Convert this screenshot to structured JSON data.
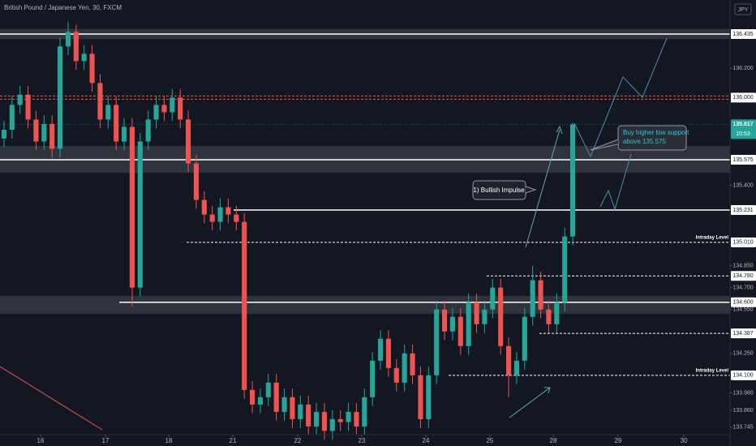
{
  "chart_data": {
    "type": "candlestick",
    "title": "British Pound / Japanese Yen, 30, FXCM",
    "currency": "JPY",
    "up_color": "#26a69a",
    "down_color": "#ef5350",
    "grid": false,
    "xlim": [
      -0.5,
      90.64
    ],
    "ylim": [
      133.694,
      136.668
    ],
    "xticks": [
      {
        "value": 4.56,
        "label": "16"
      },
      {
        "value": 12.66,
        "label": "17"
      },
      {
        "value": 20.56,
        "label": "18"
      },
      {
        "value": 28.56,
        "label": "21"
      },
      {
        "value": 36.66,
        "label": "22"
      },
      {
        "value": 44.66,
        "label": "23"
      },
      {
        "value": 52.66,
        "label": "24"
      },
      {
        "value": 60.66,
        "label": "25"
      },
      {
        "value": 68.56,
        "label": "28"
      },
      {
        "value": 76.66,
        "label": "29"
      },
      {
        "value": 84.87,
        "label": "30"
      }
    ],
    "yticks": [
      {
        "value": 136.2,
        "label": "136.200"
      },
      {
        "value": 135.4,
        "label": "135.400"
      },
      {
        "value": 134.85,
        "label": "134.850"
      },
      {
        "value": 134.7,
        "label": "134.700"
      },
      {
        "value": 134.55,
        "label": "134.550"
      },
      {
        "value": 134.25,
        "label": "134.250"
      },
      {
        "value": 133.98,
        "label": "133.980"
      },
      {
        "value": 133.86,
        "label": "133.860"
      },
      {
        "value": 133.745,
        "label": "133.745"
      }
    ],
    "bands": [
      [
        136.4,
        136.47
      ],
      [
        135.486,
        135.669
      ],
      [
        134.521,
        134.643
      ]
    ],
    "levels": [
      {
        "value": 136.435,
        "label": "136.435",
        "start": -0.5,
        "style": "solid",
        "color": "#ffffff"
      },
      {
        "value": 136.0,
        "label": "136.000",
        "start": -0.5,
        "style": "double-dashed",
        "color": "#ef5350"
      },
      {
        "value": 135.575,
        "label": "135.575",
        "start": -0.5,
        "style": "solid",
        "color": "#ffffff"
      },
      {
        "value": 135.231,
        "label": "135.231",
        "start": 28.66,
        "style": "solid",
        "color": "#ffffff"
      },
      {
        "value": 135.01,
        "label": "135.010",
        "start": 22.79,
        "style": "dashed",
        "color": "#ffffff",
        "note": "Intraday Level"
      },
      {
        "value": 134.78,
        "label": "134.780",
        "start": 60.26,
        "style": "dashed",
        "color": "#ffffff"
      },
      {
        "value": 134.6,
        "label": "134.600",
        "start": 14.39,
        "style": "solid",
        "color": "#ffffff"
      },
      {
        "value": 134.387,
        "label": "134.387",
        "start": 66.84,
        "style": "dashed",
        "color": "#ffffff"
      },
      {
        "value": 134.1,
        "label": "134.100",
        "start": 55.5,
        "style": "dashed",
        "color": "#ffffff",
        "note": "Intraday Level"
      }
    ],
    "last_price": {
      "value": 135.817,
      "label": "135.817",
      "countdown": "10:53"
    },
    "annotations": [
      "1) Bullish Impulse",
      "Buy higher low support",
      "above 135.575"
    ],
    "x": [
      0,
      1,
      2,
      3,
      4,
      5,
      6,
      7,
      8,
      9,
      10,
      11,
      12,
      13,
      14,
      15,
      16,
      17,
      18,
      19,
      20,
      21,
      22,
      23,
      24,
      25,
      26,
      27,
      28,
      29,
      30,
      31,
      32,
      33,
      34,
      35,
      36,
      37,
      38,
      39,
      40,
      41,
      42,
      43,
      44,
      45,
      46,
      47,
      48,
      49,
      50,
      51,
      52,
      53,
      54,
      55,
      56,
      57,
      58,
      59,
      60,
      61,
      62,
      63,
      64,
      65,
      66,
      67,
      68,
      69,
      70,
      71
    ],
    "open": [
      135.72,
      135.78,
      135.95,
      136.02,
      135.85,
      135.7,
      135.82,
      135.65,
      136.35,
      136.45,
      136.25,
      136.3,
      136.1,
      135.85,
      135.95,
      135.7,
      135.8,
      134.7,
      135.7,
      135.85,
      135.95,
      135.9,
      136.0,
      135.85,
      135.55,
      135.3,
      135.2,
      135.15,
      135.25,
      135.2,
      135.15,
      134.0,
      133.9,
      133.95,
      134.05,
      133.85,
      133.95,
      133.8,
      133.9,
      133.75,
      133.85,
      133.72,
      133.8,
      133.78,
      133.85,
      133.75,
      133.95,
      134.2,
      134.35,
      134.15,
      134.05,
      134.25,
      134.1,
      133.8,
      134.1,
      134.55,
      134.4,
      134.5,
      134.3,
      134.6,
      134.45,
      134.55,
      134.7,
      134.3,
      134.1,
      134.2,
      134.5,
      134.75,
      134.55,
      134.45,
      134.6,
      135.05
    ],
    "high": [
      135.84,
      136.01,
      136.08,
      136.08,
      135.91,
      135.88,
      135.88,
      136.41,
      136.52,
      136.5,
      136.36,
      136.36,
      136.16,
      136.01,
      136.01,
      135.86,
      135.86,
      135.76,
      135.91,
      136.01,
      136.01,
      136.06,
      136.06,
      135.91,
      135.61,
      135.36,
      135.26,
      135.31,
      135.31,
      135.26,
      135.21,
      134.06,
      134.01,
      134.11,
      134.11,
      134.01,
      134.01,
      133.96,
      133.96,
      133.91,
      133.91,
      133.86,
      133.86,
      133.91,
      133.91,
      134.01,
      134.26,
      134.41,
      134.41,
      134.21,
      134.31,
      134.31,
      134.16,
      134.16,
      134.61,
      134.61,
      134.56,
      134.56,
      134.66,
      134.66,
      134.61,
      134.76,
      134.76,
      134.36,
      134.26,
      134.56,
      134.85,
      134.81,
      134.61,
      134.66,
      135.11,
      135.83
    ],
    "low": [
      135.66,
      135.72,
      135.89,
      135.79,
      135.64,
      135.64,
      135.59,
      135.59,
      136.29,
      136.19,
      136.19,
      136.04,
      135.79,
      135.79,
      135.64,
      135.64,
      134.57,
      134.64,
      135.64,
      135.79,
      135.84,
      135.84,
      135.79,
      135.49,
      135.24,
      135.14,
      135.09,
      135.09,
      135.14,
      135.09,
      133.94,
      133.84,
      133.84,
      133.89,
      133.79,
      133.79,
      133.74,
      133.74,
      133.69,
      133.69,
      133.66,
      133.66,
      133.72,
      133.72,
      133.69,
      133.69,
      133.89,
      134.14,
      134.09,
      133.99,
      133.99,
      134.04,
      133.74,
      133.74,
      134.04,
      134.34,
      134.34,
      134.24,
      134.24,
      134.39,
      134.39,
      134.49,
      134.24,
      133.95,
      134.04,
      134.14,
      134.44,
      134.49,
      134.39,
      134.39,
      134.54,
      134.99
    ],
    "close": [
      135.78,
      135.95,
      136.02,
      135.85,
      135.7,
      135.82,
      135.65,
      136.35,
      136.45,
      136.25,
      136.3,
      136.1,
      135.85,
      135.95,
      135.7,
      135.8,
      134.7,
      135.7,
      135.85,
      135.95,
      135.9,
      136.0,
      135.85,
      135.55,
      135.3,
      135.2,
      135.15,
      135.25,
      135.2,
      135.15,
      134.0,
      133.9,
      133.95,
      134.05,
      133.85,
      133.95,
      133.8,
      133.9,
      133.75,
      133.85,
      133.72,
      133.8,
      133.78,
      133.85,
      133.75,
      133.95,
      134.2,
      134.35,
      134.15,
      134.05,
      134.25,
      134.1,
      133.8,
      134.1,
      134.55,
      134.4,
      134.5,
      134.3,
      134.6,
      134.45,
      134.55,
      134.7,
      134.3,
      134.1,
      134.2,
      134.5,
      134.75,
      134.55,
      134.45,
      134.6,
      135.05,
      135.817
    ]
  }
}
